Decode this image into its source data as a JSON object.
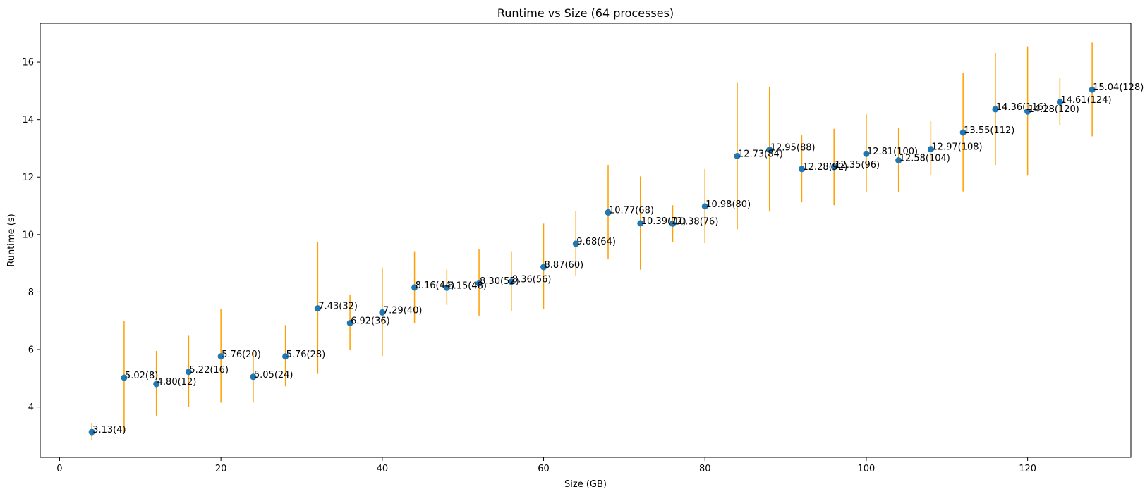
{
  "colors": {
    "point": "#1f77b4",
    "errorbar": "#ff9f00",
    "axis": "#000000"
  },
  "chart_data": {
    "type": "scatter",
    "title": "Runtime vs Size (64 processes)",
    "xlabel": "Size (GB)",
    "ylabel": "Runtime (s)",
    "xlim": [
      -2.4,
      132.8
    ],
    "ylim": [
      2.25,
      17.35
    ],
    "xticks": [
      0,
      20,
      40,
      60,
      80,
      100,
      120
    ],
    "yticks": [
      4,
      6,
      8,
      10,
      12,
      14,
      16
    ],
    "grid": false,
    "points": [
      {
        "x": 4,
        "y": 3.13,
        "err_low": 2.85,
        "err_high": 3.45,
        "label": "3.13(4)"
      },
      {
        "x": 8,
        "y": 5.02,
        "err_low": 3.1,
        "err_high": 7.0,
        "label": "5.02(8)"
      },
      {
        "x": 12,
        "y": 4.8,
        "err_low": 3.7,
        "err_high": 5.95,
        "label": "4.80(12)"
      },
      {
        "x": 16,
        "y": 5.22,
        "err_low": 4.0,
        "err_high": 6.48,
        "label": "5.22(16)"
      },
      {
        "x": 20,
        "y": 5.76,
        "err_low": 4.15,
        "err_high": 7.42,
        "label": "5.76(20)"
      },
      {
        "x": 24,
        "y": 5.05,
        "err_low": 4.15,
        "err_high": 5.95,
        "label": "5.05(24)"
      },
      {
        "x": 28,
        "y": 5.76,
        "err_low": 4.72,
        "err_high": 6.85,
        "label": "5.76(28)"
      },
      {
        "x": 32,
        "y": 7.43,
        "err_low": 5.15,
        "err_high": 9.75,
        "label": "7.43(32)"
      },
      {
        "x": 36,
        "y": 6.92,
        "err_low": 6.0,
        "err_high": 7.9,
        "label": "6.92(36)"
      },
      {
        "x": 40,
        "y": 7.29,
        "err_low": 5.78,
        "err_high": 8.85,
        "label": "7.29(40)"
      },
      {
        "x": 44,
        "y": 8.16,
        "err_low": 6.92,
        "err_high": 9.42,
        "label": "8.16(44)"
      },
      {
        "x": 48,
        "y": 8.15,
        "err_low": 7.55,
        "err_high": 8.78,
        "label": "8.15(48)"
      },
      {
        "x": 52,
        "y": 8.3,
        "err_low": 7.18,
        "err_high": 9.48,
        "label": "8.30(52)"
      },
      {
        "x": 56,
        "y": 8.36,
        "err_low": 7.35,
        "err_high": 9.42,
        "label": "8.36(56)"
      },
      {
        "x": 60,
        "y": 8.87,
        "err_low": 7.42,
        "err_high": 10.38,
        "label": "8.87(60)"
      },
      {
        "x": 64,
        "y": 9.68,
        "err_low": 8.58,
        "err_high": 10.82,
        "label": "9.68(64)"
      },
      {
        "x": 68,
        "y": 10.77,
        "err_low": 9.15,
        "err_high": 12.42,
        "label": "10.77(68)"
      },
      {
        "x": 72,
        "y": 10.39,
        "err_low": 8.78,
        "err_high": 12.02,
        "label": "10.39(72)"
      },
      {
        "x": 76,
        "y": 10.38,
        "err_low": 9.75,
        "err_high": 11.02,
        "label": "10.38(76)"
      },
      {
        "x": 80,
        "y": 10.98,
        "err_low": 9.7,
        "err_high": 12.28,
        "label": "10.98(80)"
      },
      {
        "x": 84,
        "y": 12.73,
        "err_low": 10.18,
        "err_high": 15.28,
        "label": "12.73(84)"
      },
      {
        "x": 88,
        "y": 12.95,
        "err_low": 10.8,
        "err_high": 15.12,
        "label": "12.95(88)"
      },
      {
        "x": 92,
        "y": 12.28,
        "err_low": 11.12,
        "err_high": 13.45,
        "label": "12.28(92)"
      },
      {
        "x": 96,
        "y": 12.35,
        "err_low": 11.02,
        "err_high": 13.68,
        "label": "12.35(96)"
      },
      {
        "x": 100,
        "y": 12.81,
        "err_low": 11.48,
        "err_high": 14.18,
        "label": "12.81(100)"
      },
      {
        "x": 104,
        "y": 12.58,
        "err_low": 11.48,
        "err_high": 13.72,
        "label": "12.58(104)"
      },
      {
        "x": 108,
        "y": 12.97,
        "err_low": 12.05,
        "err_high": 13.95,
        "label": "12.97(108)"
      },
      {
        "x": 112,
        "y": 13.55,
        "err_low": 11.5,
        "err_high": 15.62,
        "label": "13.55(112)"
      },
      {
        "x": 116,
        "y": 14.36,
        "err_low": 12.42,
        "err_high": 16.32,
        "label": "14.36(116)"
      },
      {
        "x": 120,
        "y": 14.28,
        "err_low": 12.05,
        "err_high": 16.55,
        "label": "14.28(120)"
      },
      {
        "x": 124,
        "y": 14.61,
        "err_low": 13.8,
        "err_high": 15.45,
        "label": "14.61(124)"
      },
      {
        "x": 128,
        "y": 15.04,
        "err_low": 13.42,
        "err_high": 16.68,
        "label": "15.04(128)"
      }
    ]
  }
}
